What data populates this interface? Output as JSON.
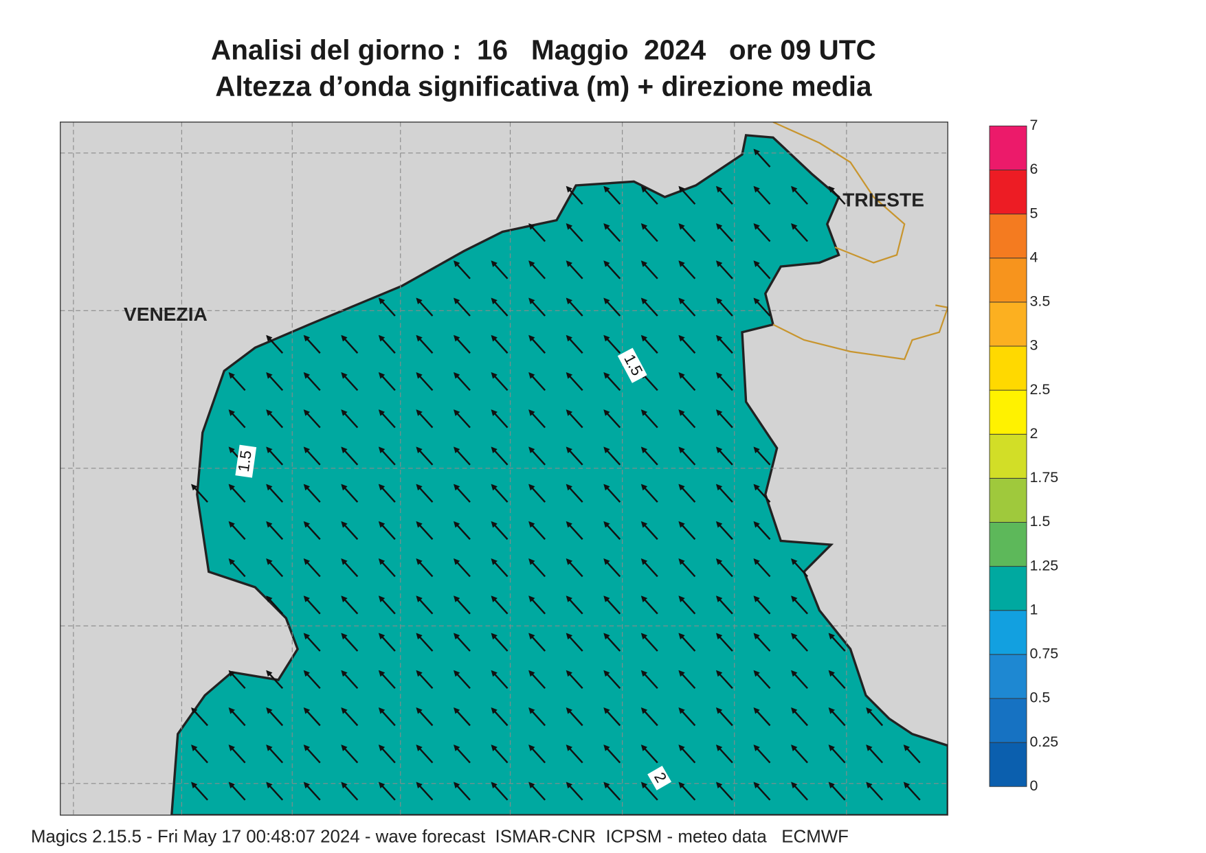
{
  "title": "Analisi del giorno :  16   Maggio  2024   ore 09 UTC",
  "subtitle": "Altezza d’onda significativa (m) + direzione media",
  "places": [
    "VENEZIA",
    "TRIESTE"
  ],
  "contour_labels": [
    1.5,
    1.5,
    2
  ],
  "colorbar": {
    "levels": [
      0,
      0.25,
      0.5,
      0.75,
      1,
      1.25,
      1.5,
      1.75,
      2,
      2.5,
      3,
      3.5,
      4,
      5,
      6,
      7
    ],
    "colors": [
      "#0b5fae",
      "#1672c2",
      "#1e88d2",
      "#12a0e0",
      "#00a9a0",
      "#5db85a",
      "#9fc93c",
      "#d2de27",
      "#fff200",
      "#ffd900",
      "#fcb020",
      "#f7941d",
      "#f47b20",
      "#ed1c24",
      "#ec1a6a"
    ]
  },
  "footer": "Magics 2.15.5 - Fri May 17 00:48:07 2024 - wave forecast  ISMAR-CNR  ICPSM - meteo data   ECMWF"
}
